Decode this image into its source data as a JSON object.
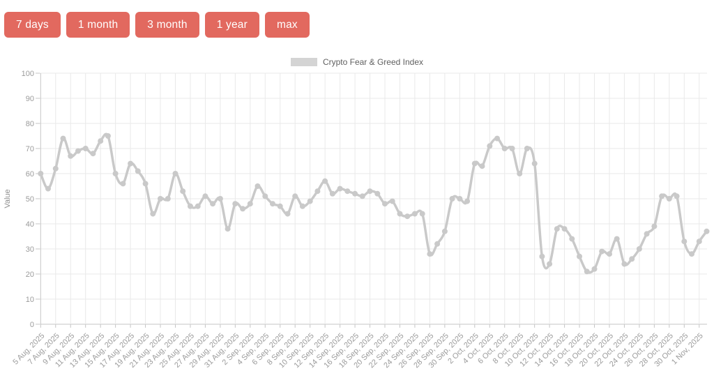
{
  "toolbar": {
    "accent_color": "#e2695f",
    "buttons": [
      {
        "label": "7 days"
      },
      {
        "label": "1 month"
      },
      {
        "label": "3 month"
      },
      {
        "label": "1 year"
      },
      {
        "label": "max"
      }
    ]
  },
  "legend": {
    "label": "Crypto Fear & Greed Index",
    "swatch_color": "#d4d4d4"
  },
  "chart_data": {
    "type": "line",
    "title": "Crypto Fear & Greed Index",
    "ylabel": "Value",
    "xlabel": "",
    "ylim": [
      0,
      100
    ],
    "ytick_step": 10,
    "xtick_every": 2,
    "grid": true,
    "legend_position": "top-center",
    "line_color": "#c9c9c9",
    "grid_color": "#e9e9e9",
    "axis_color": "#c5c5c5",
    "tick_text_color": "#9b9b9b",
    "x": [
      "5 Aug, 2025",
      "6 Aug, 2025",
      "7 Aug, 2025",
      "8 Aug, 2025",
      "9 Aug, 2025",
      "10 Aug, 2025",
      "11 Aug, 2025",
      "12 Aug, 2025",
      "13 Aug, 2025",
      "14 Aug, 2025",
      "15 Aug, 2025",
      "16 Aug, 2025",
      "17 Aug, 2025",
      "18 Aug, 2025",
      "19 Aug, 2025",
      "20 Aug, 2025",
      "21 Aug, 2025",
      "22 Aug, 2025",
      "23 Aug, 2025",
      "24 Aug, 2025",
      "25 Aug, 2025",
      "26 Aug, 2025",
      "27 Aug, 2025",
      "28 Aug, 2025",
      "29 Aug, 2025",
      "30 Aug, 2025",
      "31 Aug, 2025",
      "1 Sep, 2025",
      "2 Sep, 2025",
      "3 Sep, 2025",
      "4 Sep, 2025",
      "5 Sep, 2025",
      "6 Sep, 2025",
      "7 Sep, 2025",
      "8 Sep, 2025",
      "9 Sep, 2025",
      "10 Sep, 2025",
      "11 Sep, 2025",
      "12 Sep, 2025",
      "13 Sep, 2025",
      "14 Sep, 2025",
      "15 Sep, 2025",
      "16 Sep, 2025",
      "17 Sep, 2025",
      "18 Sep, 2025",
      "19 Sep, 2025",
      "20 Sep, 2025",
      "21 Sep, 2025",
      "22 Sep, 2025",
      "23 Sep, 2025",
      "24 Sep, 2025",
      "25 Sep, 2025",
      "26 Sep, 2025",
      "27 Sep, 2025",
      "28 Sep, 2025",
      "29 Sep, 2025",
      "30 Sep, 2025",
      "1 Oct, 2025",
      "2 Oct, 2025",
      "3 Oct, 2025",
      "4 Oct, 2025",
      "5 Oct, 2025",
      "6 Oct, 2025",
      "7 Oct, 2025",
      "8 Oct, 2025",
      "9 Oct, 2025",
      "10 Oct, 2025",
      "11 Oct, 2025",
      "12 Oct, 2025",
      "13 Oct, 2025",
      "14 Oct, 2025",
      "15 Oct, 2025",
      "16 Oct, 2025",
      "17 Oct, 2025",
      "18 Oct, 2025",
      "19 Oct, 2025",
      "20 Oct, 2025",
      "21 Oct, 2025",
      "22 Oct, 2025",
      "23 Oct, 2025",
      "24 Oct, 2025",
      "25 Oct, 2025",
      "26 Oct, 2025",
      "27 Oct, 2025",
      "28 Oct, 2025",
      "29 Oct, 2025",
      "30 Oct, 2025",
      "31 Oct, 2025",
      "1 Nov, 2025",
      "2 Nov, 2025"
    ],
    "series": [
      {
        "name": "Crypto Fear & Greed Index",
        "values": [
          60,
          54,
          62,
          74,
          67,
          69,
          70,
          68,
          73,
          75,
          60,
          56,
          64,
          61,
          56,
          44,
          50,
          50,
          60,
          53,
          47,
          47,
          51,
          48,
          50,
          38,
          48,
          46,
          48,
          55,
          51,
          48,
          47,
          44,
          51,
          47,
          49,
          53,
          57,
          52,
          54,
          53,
          52,
          51,
          53,
          52,
          48,
          49,
          44,
          43,
          44,
          44,
          28,
          32,
          37,
          50,
          50,
          49,
          64,
          63,
          71,
          74,
          70,
          70,
          60,
          70,
          64,
          27,
          24,
          38,
          38,
          34,
          27,
          21,
          22,
          29,
          28,
          34,
          24,
          26,
          30,
          36,
          39,
          51,
          50,
          51,
          33,
          28,
          33,
          37
        ]
      }
    ],
    "yticks": [
      0,
      10,
      20,
      30,
      40,
      50,
      60,
      70,
      80,
      90,
      100
    ]
  }
}
